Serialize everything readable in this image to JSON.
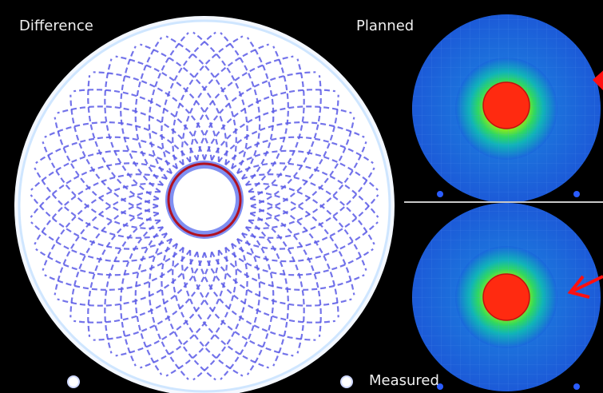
{
  "labels": {
    "difference": "Difference",
    "planned": "Planned",
    "measured": "Measured"
  },
  "colors": {
    "background": "#000000",
    "difference_disc": "#ffffff",
    "pattern": "#5a5ae6",
    "ring": "#b01020",
    "dose_low": "#1c63e0",
    "dose_high": "#ff2a10",
    "arrow": "#ff1010",
    "separator": "#c8c8c8"
  }
}
